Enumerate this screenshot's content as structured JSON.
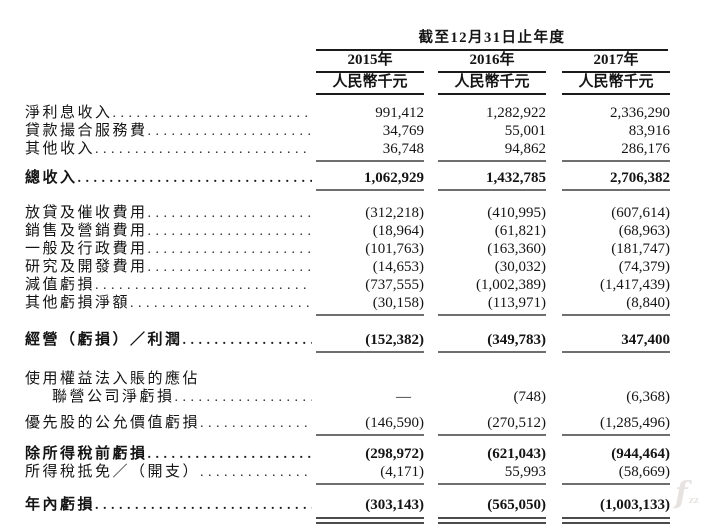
{
  "table": {
    "period_header": "截至12月31日止年度",
    "columns": [
      {
        "year": "2015年",
        "unit": "人民幣千元"
      },
      {
        "year": "2016年",
        "unit": "人民幣千元"
      },
      {
        "year": "2017年",
        "unit": "人民幣千元"
      }
    ],
    "rows": [
      {
        "label": "淨利息收入",
        "values": [
          "991,412",
          "1,282,922",
          "2,336,290"
        ],
        "space_before": 8
      },
      {
        "label": "貸款撮合服務費",
        "values": [
          "34,769",
          "55,001",
          "83,916"
        ]
      },
      {
        "label": "其他收入",
        "values": [
          "36,748",
          "94,862",
          "286,176"
        ],
        "rule": "single"
      },
      {
        "label": "總收入",
        "values": [
          "1,062,929",
          "1,432,785",
          "2,706,382"
        ],
        "bold": true,
        "rule": "single",
        "space_before": 6
      },
      {
        "label": "放貸及催收費用",
        "values": [
          "(312,218)",
          "(410,995)",
          "(607,614)"
        ],
        "space_before": 12
      },
      {
        "label": "銷售及營銷費用",
        "values": [
          "(18,964)",
          "(61,821)",
          "(68,963)"
        ]
      },
      {
        "label": "一般及行政費用",
        "values": [
          "(101,763)",
          "(163,360)",
          "(181,747)"
        ]
      },
      {
        "label": "研究及開發費用",
        "values": [
          "(14,653)",
          "(30,032)",
          "(74,379)"
        ]
      },
      {
        "label": "減值虧損",
        "values": [
          "(737,555)",
          "(1,002,389)",
          "(1,417,439)"
        ]
      },
      {
        "label": "其他虧損淨額",
        "values": [
          "(30,158)",
          "(113,971)",
          "(8,840)"
        ],
        "rule": "single"
      },
      {
        "label": "經營（虧損）／利潤",
        "values": [
          "(152,382)",
          "(349,783)",
          "347,400"
        ],
        "bold": true,
        "rule": "single",
        "space_before": 14
      },
      {
        "label": "使用權益法入賬的應佔",
        "values": null,
        "dots": false,
        "space_before": 16
      },
      {
        "label": "聯營公司淨虧損",
        "values": [
          "—",
          "(748)",
          "(6,368)"
        ],
        "indent": true
      },
      {
        "label": "優先股的公允價值虧損",
        "values": [
          "(146,590)",
          "(270,512)",
          "(1,285,496)"
        ],
        "rule": "single",
        "space_before": 8
      },
      {
        "label": "除所得稅前虧損",
        "values": [
          "(298,972)",
          "(621,043)",
          "(944,464)"
        ],
        "bold": true,
        "space_before": 8
      },
      {
        "label": "所得稅抵免／（開支）",
        "values": [
          "(4,171)",
          "55,993",
          "(58,669)"
        ],
        "rule": "single"
      },
      {
        "label": "年內虧損",
        "values": [
          "(303,143)",
          "(565,050)",
          "(1,003,133)"
        ],
        "bold": true,
        "rule": "double",
        "space_before": 10
      }
    ]
  },
  "watermark": {
    "symbol": "f",
    "sub": "zz"
  }
}
